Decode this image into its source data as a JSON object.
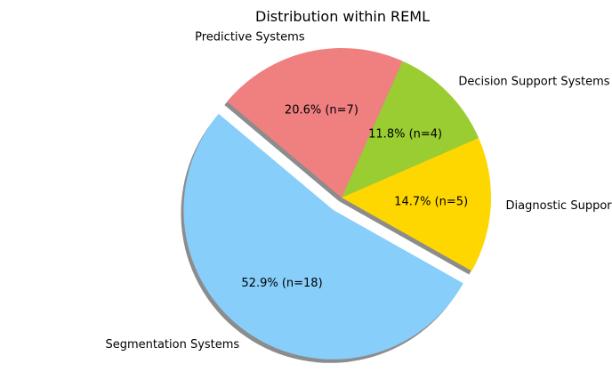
{
  "chart_data": {
    "type": "pie",
    "title": "Distribution within REML",
    "slices": [
      {
        "label": "Segmentation Systems",
        "value": 18,
        "pct_label": "52.9% (n=18)",
        "color": "#87CEFA",
        "exploded": true
      },
      {
        "label": "Diagnostic Support Systems",
        "value": 5,
        "pct_label": "14.7% (n=5)",
        "color": "#FFD700",
        "exploded": false
      },
      {
        "label": "Decision Support Systems",
        "value": 4,
        "pct_label": "11.8% (n=4)",
        "color": "#9ACD32",
        "exploded": false
      },
      {
        "label": "Predictive Systems",
        "value": 7,
        "pct_label": "20.6% (n=7)",
        "color": "#F08080",
        "exploded": false
      }
    ],
    "shadow": true,
    "legend": "none"
  }
}
